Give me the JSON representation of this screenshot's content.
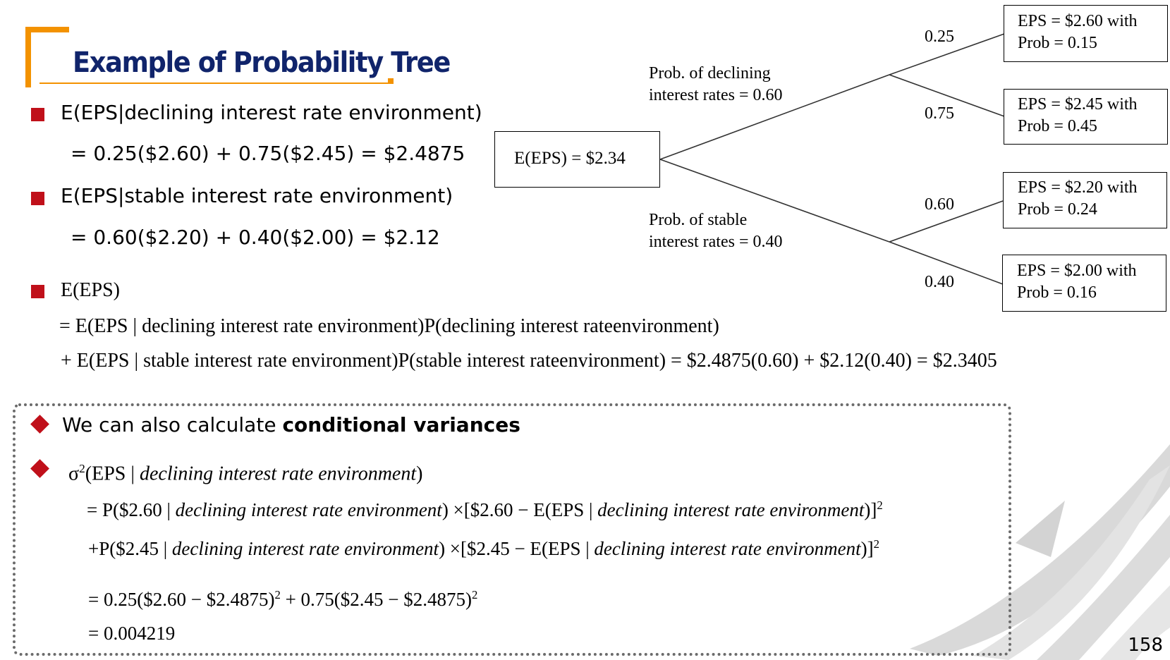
{
  "slide": {
    "title": "Example of Probability Tree",
    "page_number": "158",
    "accent_color": "#f39200",
    "title_color": "#10246b",
    "bullet_color": "#c0101a"
  },
  "bullets": {
    "b1": "E(EPS|declining interest rate environment)",
    "b1_calc": "= 0.25($2.60) + 0.75($2.45) = $2.4875",
    "b2": "E(EPS|stable interest rate environment)",
    "b2_calc": "= 0.60($2.20) + 0.40($2.00) = $2.12",
    "b3": "E(EPS)",
    "b3_line1": "= E(EPS | declining interest rate environment)P(declining interest rateenvironment)",
    "b3_line2": "+ E(EPS | stable interest rate environment)P(stable interest rateenvironment)  = $2.4875(0.60) + $2.12(0.40) = $2.3405"
  },
  "tree": {
    "root": "E(EPS) = $2.34",
    "branch_declining_label_1": "Prob. of declining",
    "branch_declining_label_2": "interest rates = 0.60",
    "branch_stable_label_1": "Prob. of stable",
    "branch_stable_label_2": "interest rates = 0.40",
    "p1": "0.25",
    "p2": "0.75",
    "p3": "0.60",
    "p4": "0.40",
    "outcomes": [
      {
        "line1": "EPS = $2.60 with",
        "line2": "Prob = 0.15"
      },
      {
        "line1": "EPS = $2.45 with",
        "line2": "Prob = 0.45"
      },
      {
        "line1": "EPS = $2.20 with",
        "line2": "Prob = 0.24"
      },
      {
        "line1": "EPS = $2.00 with",
        "line2": "Prob = 0.16"
      }
    ]
  },
  "variance": {
    "intro_prefix": "We can also calculate ",
    "intro_bold": "conditional variances",
    "sigma": "σ",
    "sq": "2",
    "line0_body": "(EPS | ",
    "ctx": "declining interest rate environment",
    "close": ")",
    "line1_a": "= P($2.60 | ",
    "line1_b": ") ×[$2.60 − E(EPS | ",
    "line1_c": ")]",
    "line2_a": "+P($2.45 | ",
    "line2_b": ") ×[$2.45 − E(EPS | ",
    "line2_c": ")]",
    "line3_a": "= 0.25($2.60 − $2.4875)",
    "line3_b": " + 0.75($2.45 − $2.4875)",
    "line4": "= 0.004219"
  }
}
